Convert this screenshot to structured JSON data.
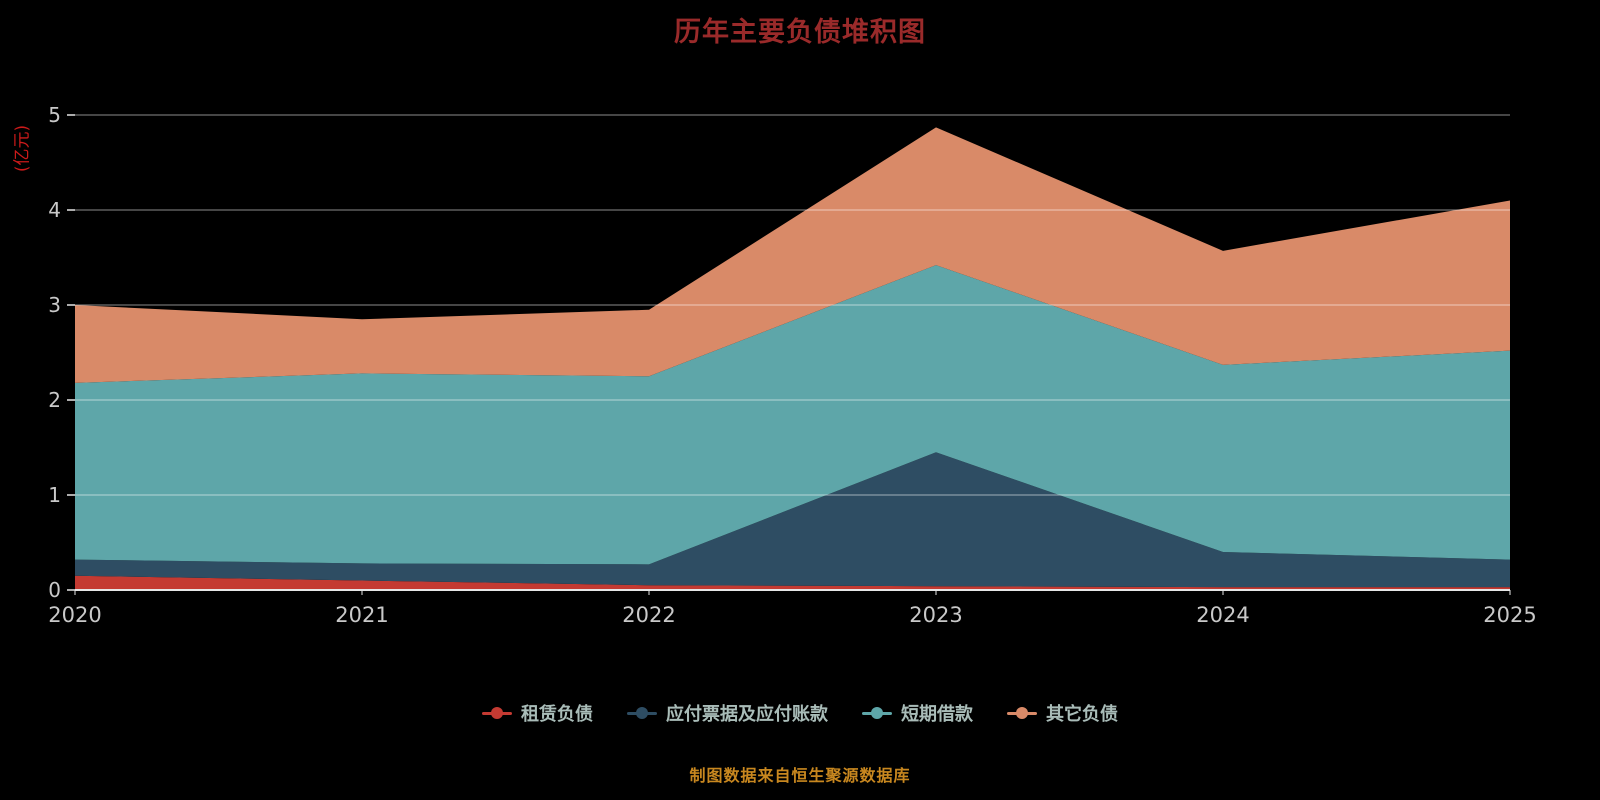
{
  "title": {
    "text": "历年主要负债堆积图"
  },
  "y_axis_unit": {
    "text": "(亿元)"
  },
  "footer": {
    "text": "制图数据来自恒生聚源数据库"
  },
  "colors": {
    "background": "#000000",
    "title": "#9a2a2a",
    "y_unit": "#cc1a1a",
    "footer": "#c8871f",
    "axis_labels": "#c9c9c9",
    "gridline": "#ffffff",
    "axis_line": "#e6e6e6",
    "legend_text": "#a9bcb8"
  },
  "chart_data": {
    "type": "area",
    "stacked": true,
    "title": "历年主要负债堆积图",
    "x": [
      2020,
      2021,
      2022,
      2023,
      2024,
      2025
    ],
    "xlabel": "",
    "ylabel": "(亿元)",
    "ylim": [
      0,
      5
    ],
    "y_ticks": [
      0,
      1,
      2,
      3,
      4,
      5
    ],
    "grid": true,
    "legend_position": "bottom",
    "series": [
      {
        "name": "租赁负债",
        "color": "#c43a32",
        "values": [
          0.15,
          0.1,
          0.05,
          0.04,
          0.03,
          0.03
        ]
      },
      {
        "name": "应付票据及应付账款",
        "color": "#2e4d63",
        "values": [
          0.17,
          0.18,
          0.22,
          1.41,
          0.37,
          0.29
        ]
      },
      {
        "name": "短期借款",
        "color": "#5ea6a9",
        "values": [
          1.86,
          2.0,
          1.98,
          1.97,
          1.97,
          2.2
        ]
      },
      {
        "name": "其它负债",
        "color": "#d98a68",
        "values": [
          0.82,
          0.57,
          0.7,
          1.45,
          1.2,
          1.58
        ]
      }
    ]
  }
}
